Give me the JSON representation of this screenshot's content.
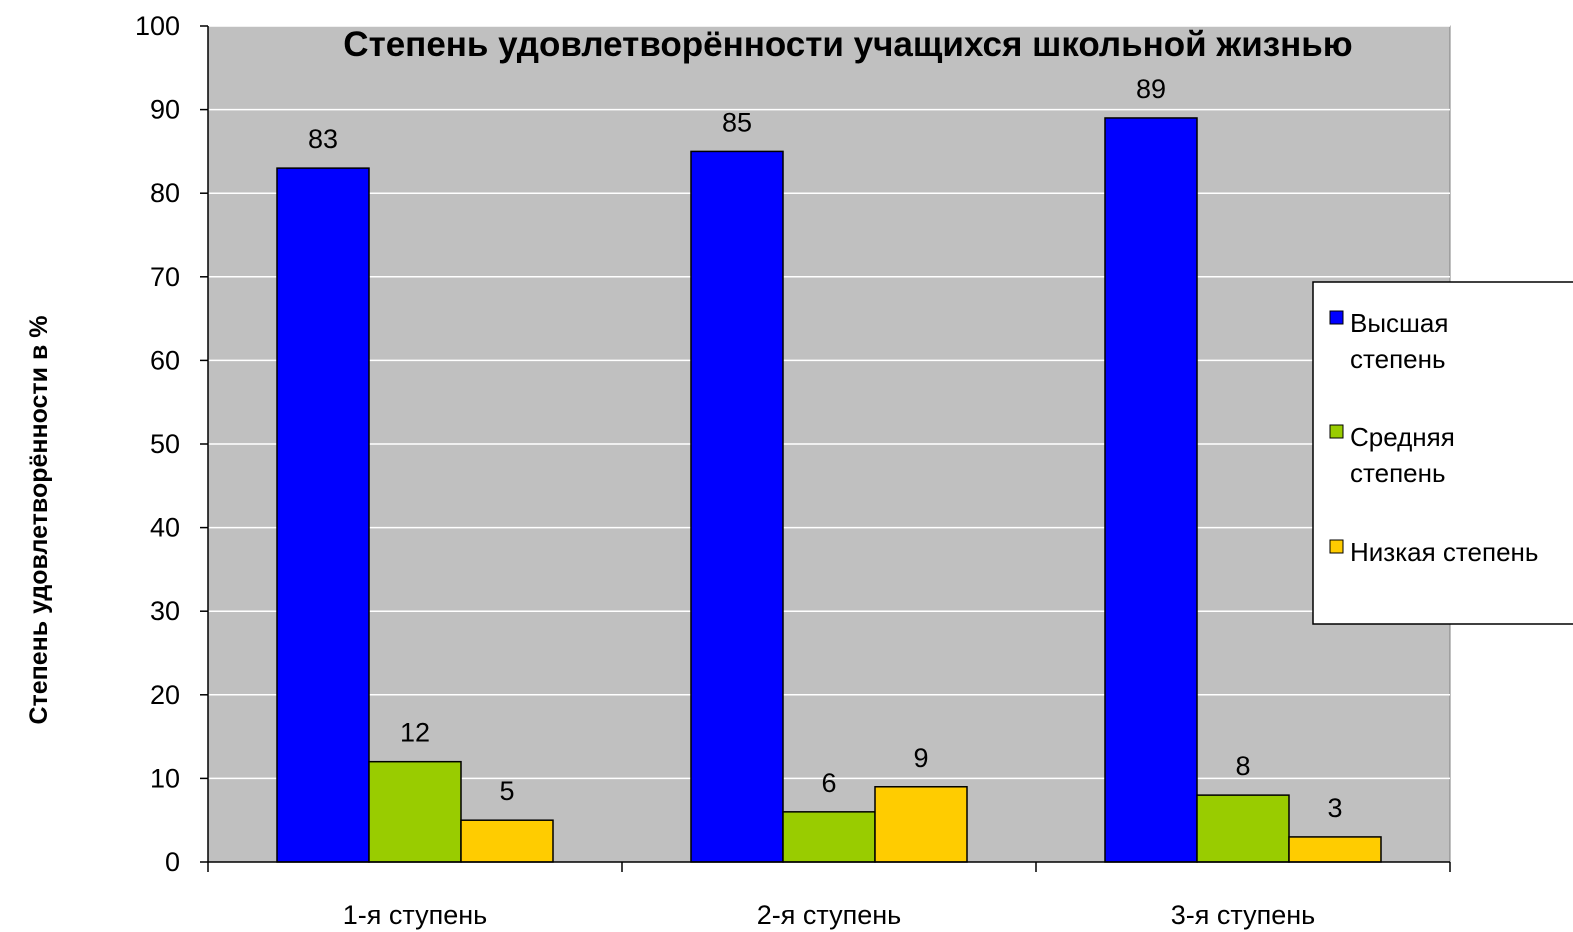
{
  "chart_data": {
    "type": "bar",
    "title": "Степень удовлетворённости учащихся школьной жизнью",
    "xlabel": "",
    "ylabel": "Степень удовлетворённости в %",
    "ylim": [
      0,
      100
    ],
    "yticks": [
      "0",
      "10",
      "20",
      "30",
      "40",
      "50",
      "60",
      "70",
      "80",
      "90",
      "100"
    ],
    "categories": [
      "1-я ступень",
      "2-я ступень",
      "3-я ступень"
    ],
    "series": [
      {
        "name": "Высшая степень",
        "legend_lines": [
          "Высшая",
          "степень"
        ],
        "color": "#0000ff",
        "values": [
          83,
          85,
          89
        ]
      },
      {
        "name": "Средняя степень",
        "legend_lines": [
          "Средняя",
          "степень"
        ],
        "color": "#99cc00",
        "values": [
          12,
          6,
          8
        ]
      },
      {
        "name": "Низкая степень",
        "legend_lines": [
          "Низкая степень"
        ],
        "color": "#ffcc00",
        "values": [
          5,
          9,
          3
        ]
      }
    ],
    "plot_background": "#c0c0c0",
    "grid": true,
    "legend_position": "right",
    "data_labels": true
  }
}
